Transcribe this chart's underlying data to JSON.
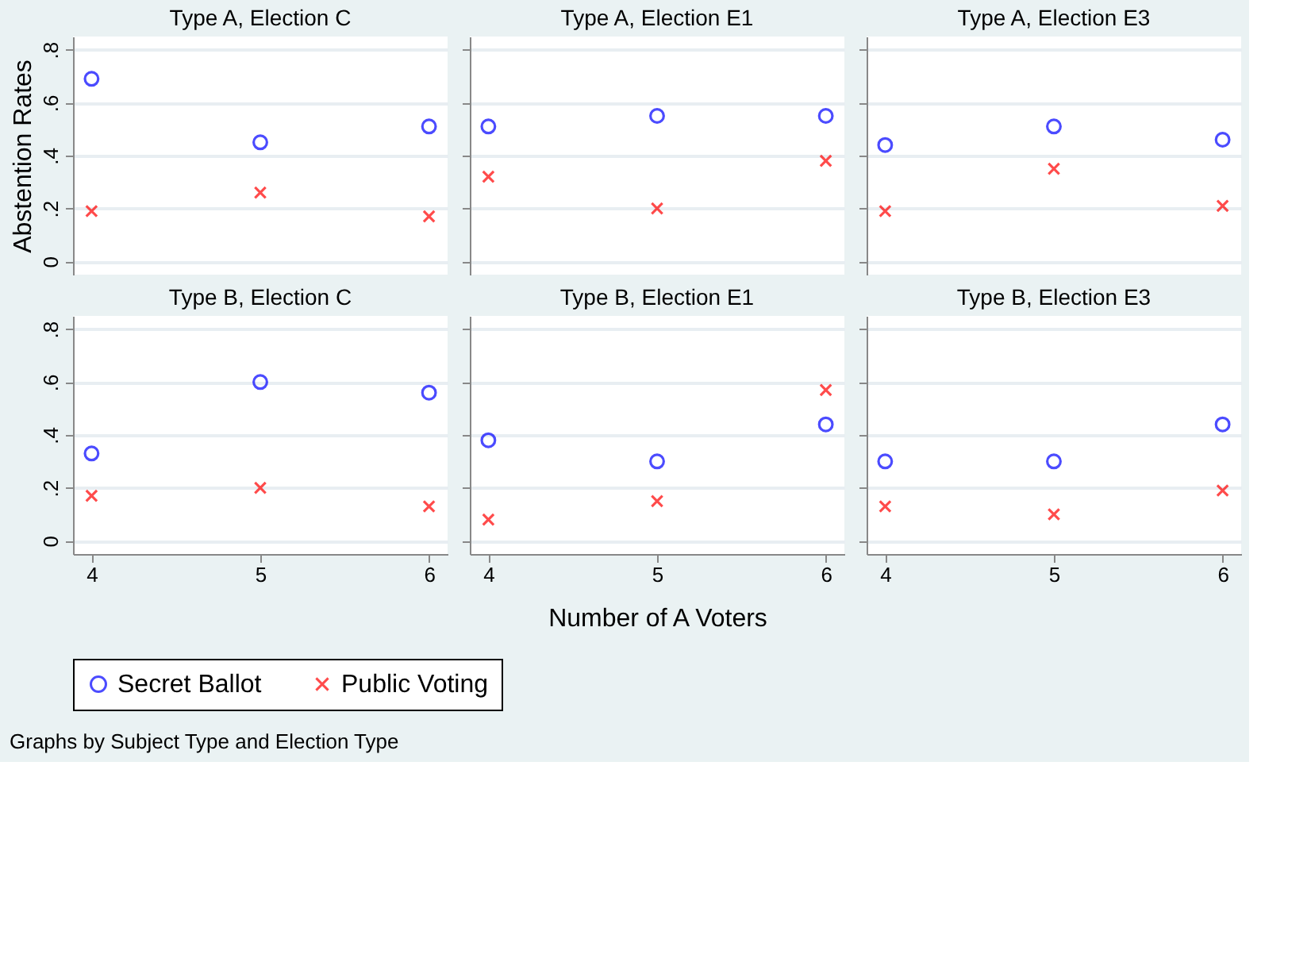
{
  "chart_data": [
    {
      "type": "scatter",
      "title": "Type A, Election C",
      "ylabel": "Abstention Rates",
      "tick_labels": "y",
      "grid": "y",
      "legend": "bottom",
      "xlim": [
        3.89,
        6.11
      ],
      "xticks": [
        4,
        5,
        6
      ],
      "ylim": [
        -0.05,
        0.85
      ],
      "yticks": [
        0,
        {
          "value": 0.2,
          "label": ".2"
        },
        {
          "value": 0.4,
          "label": ".4"
        },
        {
          "value": 0.6,
          "label": ".6"
        },
        {
          "value": 0.8,
          "label": ".8"
        }
      ],
      "x": [
        4,
        5,
        6
      ],
      "series": [
        {
          "name": "Secret Ballot",
          "color": "#0000ff",
          "marker": "circle",
          "values": [
            0.69,
            0.45,
            0.51
          ]
        },
        {
          "name": "Public Voting",
          "color": "#ff0000",
          "marker": "cross",
          "values": [
            0.19,
            0.26,
            0.17
          ]
        }
      ]
    },
    {
      "type": "scatter",
      "title": "Type A, Election E1",
      "tick_labels": false,
      "grid": "y",
      "legend": "bottom",
      "xlim": [
        3.89,
        6.11
      ],
      "xticks": [
        4,
        5,
        6
      ],
      "ylim": [
        -0.05,
        0.85
      ],
      "yticks": [
        0,
        {
          "value": 0.2,
          "label": ".2"
        },
        {
          "value": 0.4,
          "label": ".4"
        },
        {
          "value": 0.6,
          "label": ".6"
        },
        {
          "value": 0.8,
          "label": ".8"
        }
      ],
      "x": [
        4,
        5,
        6
      ],
      "series": [
        {
          "name": "Secret Ballot",
          "color": "#0000ff",
          "marker": "circle",
          "values": [
            0.51,
            0.55,
            0.55
          ]
        },
        {
          "name": "Public Voting",
          "color": "#ff0000",
          "marker": "cross",
          "values": [
            0.32,
            0.2,
            0.38
          ]
        }
      ]
    },
    {
      "type": "scatter",
      "title": "Type A, Election E3",
      "tick_labels": false,
      "grid": "y",
      "legend": "bottom",
      "xlim": [
        3.89,
        6.11
      ],
      "xticks": [
        4,
        5,
        6
      ],
      "ylim": [
        -0.05,
        0.85
      ],
      "yticks": [
        0,
        {
          "value": 0.2,
          "label": ".2"
        },
        {
          "value": 0.4,
          "label": ".4"
        },
        {
          "value": 0.6,
          "label": ".6"
        },
        {
          "value": 0.8,
          "label": ".8"
        }
      ],
      "x": [
        4,
        5,
        6
      ],
      "series": [
        {
          "name": "Secret Ballot",
          "color": "#0000ff",
          "marker": "circle",
          "values": [
            0.44,
            0.51,
            0.46
          ]
        },
        {
          "name": "Public Voting",
          "color": "#ff0000",
          "marker": "cross",
          "values": [
            0.19,
            0.35,
            0.21
          ]
        }
      ]
    },
    {
      "type": "scatter",
      "title": "Type B, Election C",
      "grid": "y",
      "legend": "bottom",
      "xlim": [
        3.89,
        6.11
      ],
      "xticks": [
        4,
        5,
        6
      ],
      "ylim": [
        -0.05,
        0.85
      ],
      "yticks": [
        0,
        {
          "value": 0.2,
          "label": ".2"
        },
        {
          "value": 0.4,
          "label": ".4"
        },
        {
          "value": 0.6,
          "label": ".6"
        },
        {
          "value": 0.8,
          "label": ".8"
        }
      ],
      "x": [
        4,
        5,
        6
      ],
      "series": [
        {
          "name": "Secret Ballot",
          "color": "#0000ff",
          "marker": "circle",
          "values": [
            0.33,
            0.6,
            0.56
          ]
        },
        {
          "name": "Public Voting",
          "color": "#ff0000",
          "marker": "cross",
          "values": [
            0.17,
            0.2,
            0.13
          ]
        }
      ]
    },
    {
      "type": "scatter",
      "title": "Type B, Election E1",
      "xlabel": "Number of A Voters",
      "tick_labels": "x",
      "grid": "y",
      "legend": "bottom",
      "xlim": [
        3.89,
        6.11
      ],
      "xticks": [
        4,
        5,
        6
      ],
      "ylim": [
        -0.05,
        0.85
      ],
      "yticks": [
        0,
        {
          "value": 0.2,
          "label": ".2"
        },
        {
          "value": 0.4,
          "label": ".4"
        },
        {
          "value": 0.6,
          "label": ".6"
        },
        {
          "value": 0.8,
          "label": ".8"
        }
      ],
      "x": [
        4,
        5,
        6
      ],
      "series": [
        {
          "name": "Secret Ballot",
          "color": "#0000ff",
          "marker": "circle",
          "values": [
            0.38,
            0.3,
            0.44
          ]
        },
        {
          "name": "Public Voting",
          "color": "#ff0000",
          "marker": "cross",
          "values": [
            0.08,
            0.15,
            0.57
          ]
        }
      ]
    },
    {
      "type": "scatter",
      "title": "Type B, Election E3",
      "tick_labels": "x",
      "grid": "y",
      "legend": "bottom",
      "xlim": [
        3.89,
        6.11
      ],
      "xticks": [
        4,
        5,
        6
      ],
      "ylim": [
        -0.05,
        0.85
      ],
      "yticks": [
        0,
        {
          "value": 0.2,
          "label": ".2"
        },
        {
          "value": 0.4,
          "label": ".4"
        },
        {
          "value": 0.6,
          "label": ".6"
        },
        {
          "value": 0.8,
          "label": ".8"
        }
      ],
      "x": [
        4,
        5,
        6
      ],
      "annotations": [
        "Graphs by Subject Type and Election Type"
      ],
      "series": [
        {
          "name": "Secret Ballot",
          "color": "#0000ff",
          "marker": "circle",
          "values": [
            0.3,
            0.3,
            0.44
          ]
        },
        {
          "name": "Public Voting",
          "color": "#ff0000",
          "marker": "cross",
          "values": [
            0.13,
            0.1,
            0.19
          ]
        }
      ]
    }
  ]
}
